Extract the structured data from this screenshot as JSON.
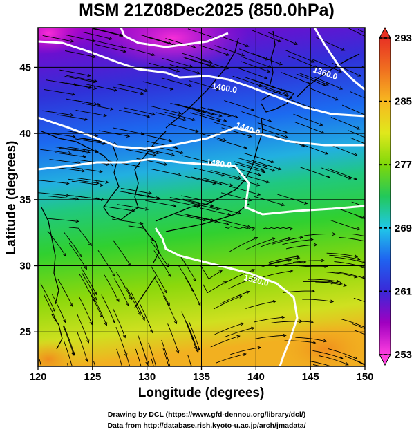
{
  "title": "MSM 21Z08Dec2025 (850.0hPa)",
  "x_axis": {
    "label": "Longitude (degrees)",
    "range": [
      120,
      150
    ],
    "ticks": [
      "120",
      "125",
      "130",
      "135",
      "140",
      "145",
      "150"
    ]
  },
  "y_axis": {
    "label": "Latitude  (degrees)",
    "range": [
      22.4,
      48
    ],
    "ticks": [
      "25",
      "30",
      "35",
      "40",
      "45"
    ]
  },
  "colorbar": {
    "range": [
      253,
      293
    ],
    "ticks": [
      "253",
      "261",
      "269",
      "277",
      "285",
      "293"
    ],
    "colors": [
      "#ff3fe0",
      "#a000c0",
      "#3a28d8",
      "#1f63f0",
      "#20c8e8",
      "#22c85a",
      "#7fd80a",
      "#e0e81c",
      "#f7b820",
      "#f07020",
      "#e83224"
    ]
  },
  "contours": [
    {
      "label": "1360.0"
    },
    {
      "label": "1400.0"
    },
    {
      "label": "1440.0"
    },
    {
      "label": "1480.0"
    },
    {
      "label": "1520.0"
    }
  ],
  "credits": {
    "line1": "Drawing by DCL (https://www.gfd-dennou.org/library/dcl/)",
    "line2": "Data from http://database.rish.kyoto-u.ac.jp/arch/jmadata/"
  }
}
